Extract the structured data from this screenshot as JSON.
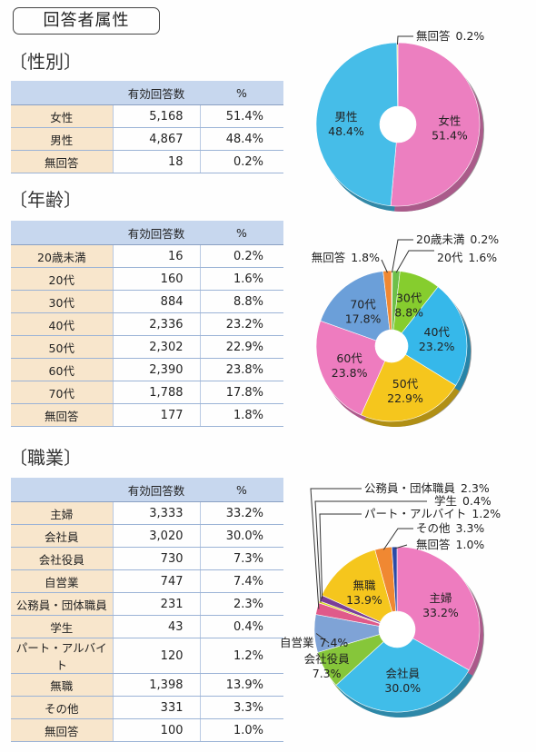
{
  "page_title": "回答者属性",
  "table_headers": [
    "有効回答数",
    "%"
  ],
  "chart_data": [
    {
      "type": "pie",
      "title": "〔性別〕",
      "categories": [
        "女性",
        "男性",
        "無回答"
      ],
      "counts": [
        "5,168",
        "4,867",
        "18"
      ],
      "values": [
        51.4,
        48.4,
        0.2
      ],
      "percent_labels": [
        "51.4%",
        "48.4%",
        "0.2%"
      ],
      "colors": [
        "#ec7fc0",
        "#46bde8",
        "#e9d86a"
      ]
    },
    {
      "type": "pie",
      "title": "〔年齢〕",
      "categories": [
        "20歳未満",
        "20代",
        "30代",
        "40代",
        "50代",
        "60代",
        "70代",
        "無回答"
      ],
      "counts": [
        "16",
        "160",
        "884",
        "2,336",
        "2,302",
        "2,390",
        "1,788",
        "177"
      ],
      "values": [
        0.2,
        1.6,
        8.8,
        23.2,
        22.9,
        23.8,
        17.8,
        1.8
      ],
      "percent_labels": [
        "0.2%",
        "1.6%",
        "8.8%",
        "23.2%",
        "22.9%",
        "23.8%",
        "17.8%",
        "1.8%"
      ],
      "colors": [
        "#f2d23c",
        "#6ec04a",
        "#86cd2e",
        "#36b8ea",
        "#f5c61d",
        "#ee7cbf",
        "#6b9fd9",
        "#f08832"
      ]
    },
    {
      "type": "pie",
      "title": "〔職業〕",
      "categories": [
        "主婦",
        "会社員",
        "会社役員",
        "自営業",
        "公務員・団体職員",
        "学生",
        "パート・アルバイト",
        "無職",
        "その他",
        "無回答"
      ],
      "counts": [
        "3,333",
        "3,020",
        "730",
        "747",
        "231",
        "43",
        "120",
        "1,398",
        "331",
        "100"
      ],
      "values": [
        33.2,
        30.0,
        7.3,
        7.4,
        2.3,
        0.4,
        1.2,
        13.9,
        3.3,
        1.0
      ],
      "percent_labels": [
        "33.2%",
        "30.0%",
        "7.3%",
        "7.4%",
        "2.3%",
        "0.4%",
        "1.2%",
        "13.9%",
        "3.3%",
        "1.0%"
      ],
      "colors": [
        "#ee7cbf",
        "#40bde9",
        "#86c63a",
        "#7fa3d6",
        "#e05a8a",
        "#d8d820",
        "#7a3f98",
        "#f5c61d",
        "#f08832",
        "#2b4aa8"
      ]
    }
  ]
}
